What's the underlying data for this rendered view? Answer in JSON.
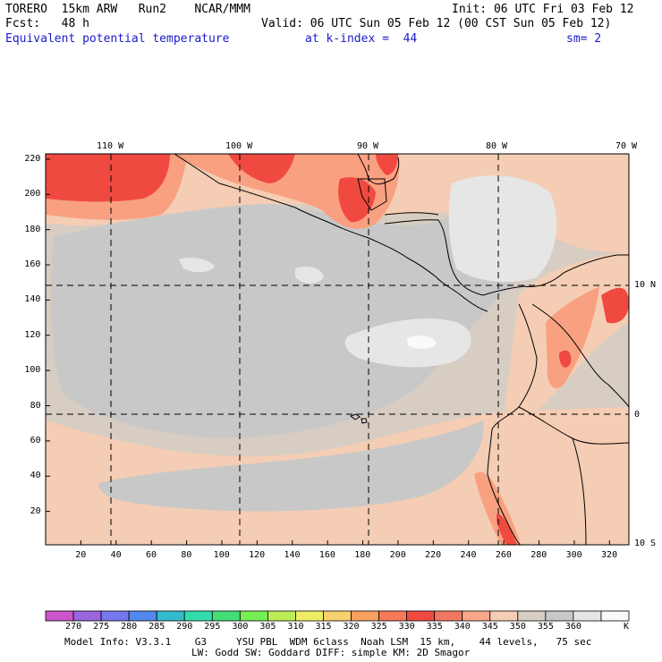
{
  "header": {
    "model": "TORERO  15km ARW   Run2    NCAR/MMM",
    "init": "Init: 06 UTC Fri 03 Feb 12",
    "fcst": "Fcst:   48 h",
    "valid": "Valid: 06 UTC Sun 05 Feb 12 (00 CST Sun 05 Feb 12)",
    "field": "Equivalent potential temperature",
    "level": "at k-index =  44",
    "smooth": "sm= 2"
  },
  "map": {
    "lon_labels": [
      "110 W",
      "100 W",
      "90 W",
      "80 W",
      "70 W"
    ],
    "lat_labels_right": [
      "10 N",
      "0",
      "10 S"
    ],
    "y_ticks": [
      "220",
      "200",
      "180",
      "160",
      "140",
      "120",
      "100",
      "80",
      "60",
      "40",
      "20"
    ],
    "x_ticks": [
      "20",
      "40",
      "60",
      "80",
      "100",
      "120",
      "140",
      "160",
      "180",
      "200",
      "220",
      "240",
      "260",
      "280",
      "300",
      "320"
    ],
    "colors": {
      "c325": "#f8785a",
      "c330": "#f04a40",
      "c335": "#f8a080",
      "c340": "#f4cdb4",
      "c345": "#d7cdc3",
      "c350": "#c8c8c8",
      "c355": "#e6e6e6",
      "c360": "#fafafa"
    }
  },
  "colorbar": {
    "labels": [
      "270",
      "275",
      "280",
      "285",
      "290",
      "295",
      "300",
      "305",
      "310",
      "315",
      "320",
      "325",
      "330",
      "335",
      "340",
      "345",
      "350",
      "355",
      "360"
    ],
    "unit": "K",
    "colors": [
      "#cc55cc",
      "#9966dd",
      "#7777ee",
      "#5588ee",
      "#33bbcc",
      "#33ddaa",
      "#44dd77",
      "#77ee55",
      "#bbee55",
      "#eeee66",
      "#f8d070",
      "#f8a060",
      "#f8785a",
      "#f04a40",
      "#f07860",
      "#f8a888",
      "#f4cdb4",
      "#d7cdc3",
      "#c8c8c8",
      "#e6e6e6",
      "#fafafa"
    ]
  },
  "footer": {
    "line1": "Model Info: V3.3.1    G3     YSU PBL  WDM 6class  Noah LSM  15 km,    44 levels,   75 sec",
    "line2": "LW: Godd SW: Goddard DIFF: simple KM: 2D Smagor"
  }
}
